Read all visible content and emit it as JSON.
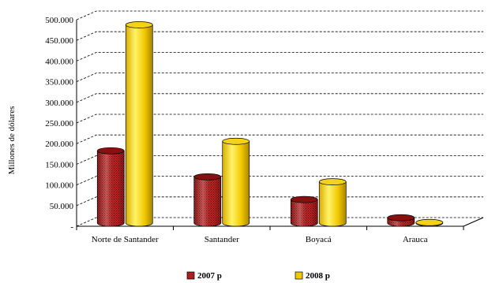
{
  "chart_data": {
    "type": "bar",
    "title": "",
    "xlabel": "",
    "ylabel": "Millones de dólares",
    "ylim": [
      0,
      500000
    ],
    "yticks": [
      "-",
      "50.000",
      "100.000",
      "150.000",
      "200.000",
      "250.000",
      "300.000",
      "350.000",
      "400.000",
      "450.000",
      "500.000"
    ],
    "categories": [
      "Norte de Santander",
      "Santander",
      "Boyacá",
      "Arauca"
    ],
    "series": [
      {
        "name": "2007 p",
        "values": [
          175000,
          112000,
          57000,
          13000
        ],
        "color": "#b01e1e"
      },
      {
        "name": "2008  p",
        "values": [
          480000,
          198000,
          100000,
          1500
        ],
        "color": "#f2c900"
      }
    ],
    "grid": true,
    "legend": "bottom",
    "style": "3d-cylinder"
  }
}
